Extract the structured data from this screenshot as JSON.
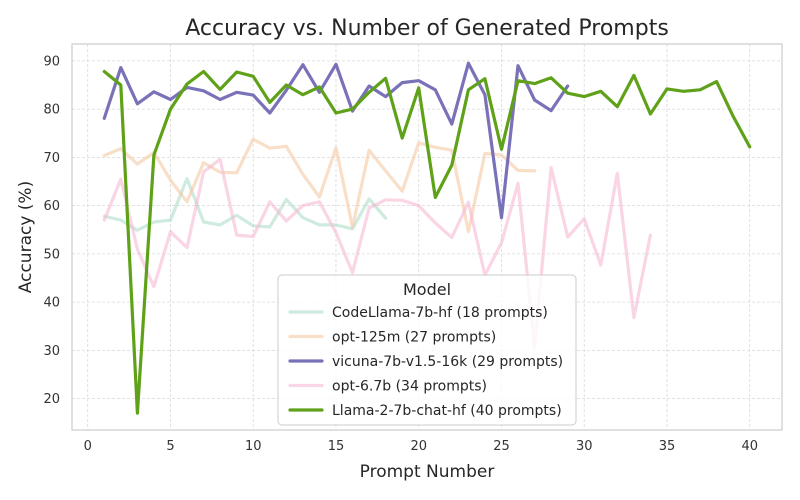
{
  "chart_data": {
    "type": "line",
    "title": "Accuracy vs. Number of Generated Prompts",
    "xlabel": "Prompt Number",
    "ylabel": "Accuracy (%)",
    "xlim": [
      -0.95,
      41.95
    ],
    "ylim": [
      13.5,
      93.5
    ],
    "xticks": [
      0,
      5,
      10,
      15,
      20,
      25,
      30,
      35,
      40
    ],
    "yticks": [
      20,
      30,
      40,
      50,
      60,
      70,
      80,
      90
    ],
    "grid": true,
    "legend": {
      "title": "Model",
      "position": "lower-center"
    },
    "series": [
      {
        "name": "CodeLlama-7b-hf (18 prompts)",
        "color": "#9fd8c0",
        "opacity": 0.5,
        "x": [
          1,
          2,
          3,
          4,
          5,
          6,
          7,
          8,
          9,
          10,
          11,
          12,
          13,
          14,
          15,
          16,
          17,
          18
        ],
        "y": [
          57.8,
          57.0,
          54.9,
          56.6,
          57.0,
          65.6,
          56.6,
          56.0,
          58.0,
          55.8,
          55.6,
          61.3,
          57.5,
          56.0,
          56.0,
          55.2,
          61.4,
          57.4
        ]
      },
      {
        "name": "opt-125m (27 prompts)",
        "color": "#f5c8a4",
        "opacity": 0.6,
        "x": [
          1,
          2,
          3,
          4,
          5,
          6,
          7,
          8,
          9,
          10,
          11,
          12,
          13,
          14,
          15,
          16,
          17,
          18,
          19,
          20,
          21,
          22,
          23,
          24,
          25,
          26,
          27
        ],
        "y": [
          70.4,
          71.8,
          68.6,
          71.0,
          65.3,
          60.8,
          68.9,
          66.9,
          66.8,
          73.8,
          71.9,
          72.3,
          66.5,
          61.8,
          72.0,
          55.5,
          71.5,
          67.2,
          63.0,
          73.0,
          72.1,
          71.5,
          54.6,
          70.8,
          70.5,
          67.3,
          67.2
        ]
      },
      {
        "name": "vicuna-7b-v1.5-16k (29 prompts)",
        "color": "#6b63b0",
        "opacity": 0.9,
        "x": [
          1,
          2,
          3,
          4,
          5,
          6,
          7,
          8,
          9,
          10,
          11,
          12,
          13,
          14,
          15,
          16,
          17,
          18,
          19,
          20,
          21,
          22,
          23,
          24,
          25,
          26,
          27,
          28,
          29
        ],
        "y": [
          78.1,
          88.6,
          81.1,
          83.6,
          82.0,
          84.5,
          83.8,
          82.0,
          83.5,
          82.9,
          79.2,
          83.9,
          89.2,
          83.5,
          89.3,
          79.6,
          84.8,
          82.6,
          85.5,
          85.9,
          84.0,
          76.9,
          89.5,
          83.0,
          57.5,
          89.0,
          81.9,
          79.7,
          84.8
        ]
      },
      {
        "name": "opt-6.7b (34 prompts)",
        "color": "#f7b9d4",
        "opacity": 0.6,
        "x": [
          1,
          2,
          3,
          4,
          5,
          6,
          7,
          8,
          9,
          10,
          11,
          12,
          13,
          14,
          15,
          16,
          17,
          18,
          19,
          20,
          21,
          22,
          23,
          24,
          25,
          26,
          27,
          28,
          29,
          30,
          31,
          32,
          33,
          34
        ],
        "y": [
          57.0,
          65.5,
          51.0,
          43.2,
          54.6,
          51.3,
          67.0,
          69.6,
          53.9,
          53.6,
          60.8,
          56.8,
          60.0,
          60.8,
          54.4,
          46.1,
          59.5,
          61.2,
          61.1,
          60.0,
          56.4,
          53.4,
          60.7,
          45.6,
          52.3,
          64.6,
          30.6,
          67.9,
          53.5,
          57.3,
          47.7,
          66.7,
          36.8,
          53.9
        ]
      },
      {
        "name": "Llama-2-7b-chat-hf (40 prompts)",
        "color": "#5fa21a",
        "opacity": 1.0,
        "x": [
          1,
          2,
          3,
          4,
          5,
          6,
          7,
          8,
          9,
          10,
          11,
          12,
          13,
          14,
          15,
          16,
          17,
          18,
          19,
          20,
          21,
          22,
          23,
          24,
          25,
          26,
          27,
          28,
          29,
          30,
          31,
          32,
          33,
          34,
          35,
          36,
          37,
          38,
          39,
          40
        ],
        "y": [
          87.8,
          85.0,
          17.0,
          70.5,
          80.0,
          85.2,
          87.8,
          84.1,
          87.7,
          86.8,
          81.4,
          85.0,
          83.0,
          84.6,
          79.2,
          80.0,
          83.5,
          86.4,
          74.0,
          84.4,
          61.7,
          68.4,
          84.0,
          86.3,
          71.7,
          85.9,
          85.3,
          86.5,
          83.3,
          82.6,
          83.7,
          80.5,
          87.0,
          79.0,
          84.2,
          83.7,
          84.0,
          85.7,
          78.5,
          72.2
        ]
      }
    ]
  }
}
